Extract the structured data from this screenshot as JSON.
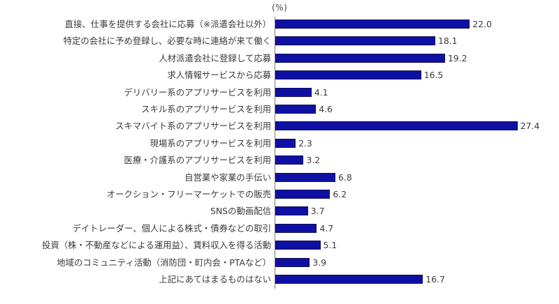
{
  "chart_data": {
    "type": "bar",
    "orientation": "horizontal",
    "title": "",
    "unit_label": "(%)",
    "xlabel": "",
    "ylabel": "",
    "xlim": [
      0,
      27.4
    ],
    "grid": false,
    "legend": null,
    "bar_color": "#0f10a3",
    "bar_border_color": "#10105a",
    "categories": [
      "直接、仕事を提供する会社に応募（※派遣会社以外）",
      "特定の会社に予め登録し、必要な時に連絡が来て働く",
      "人材派遣会社に登録して応募",
      "求人情報サービスから応募",
      "デリバリー系のアプリサービスを利用",
      "スキル系のアプリサービスを利用",
      "スキマバイト系のアプリサービスを利用",
      "現場系のアプリサービスを利用",
      "医療・介護系のアプリサービスを利用",
      "自営業や家業の手伝い",
      "オークション・フリーマーケットでの販売",
      "SNSの動画配信",
      "デイトレーダー、個人による株式・債券などの取引",
      "投資（株・不動産などによる運用益）、賃料収入を得る活動",
      "地域のコミュニティ活動（消防団・町内会・PTAなど）",
      "上記にあてはまるものはない"
    ],
    "values": [
      22.0,
      18.1,
      19.2,
      16.5,
      4.1,
      4.6,
      27.4,
      2.3,
      3.2,
      6.8,
      6.2,
      3.7,
      4.7,
      5.1,
      3.9,
      16.7
    ],
    "value_labels": [
      "22.0",
      "18.1",
      "19.2",
      "16.5",
      "4.1",
      "4.6",
      "27.4",
      "2.3",
      "3.2",
      "6.8",
      "6.2",
      "3.7",
      "4.7",
      "5.1",
      "3.9",
      "16.7"
    ]
  }
}
